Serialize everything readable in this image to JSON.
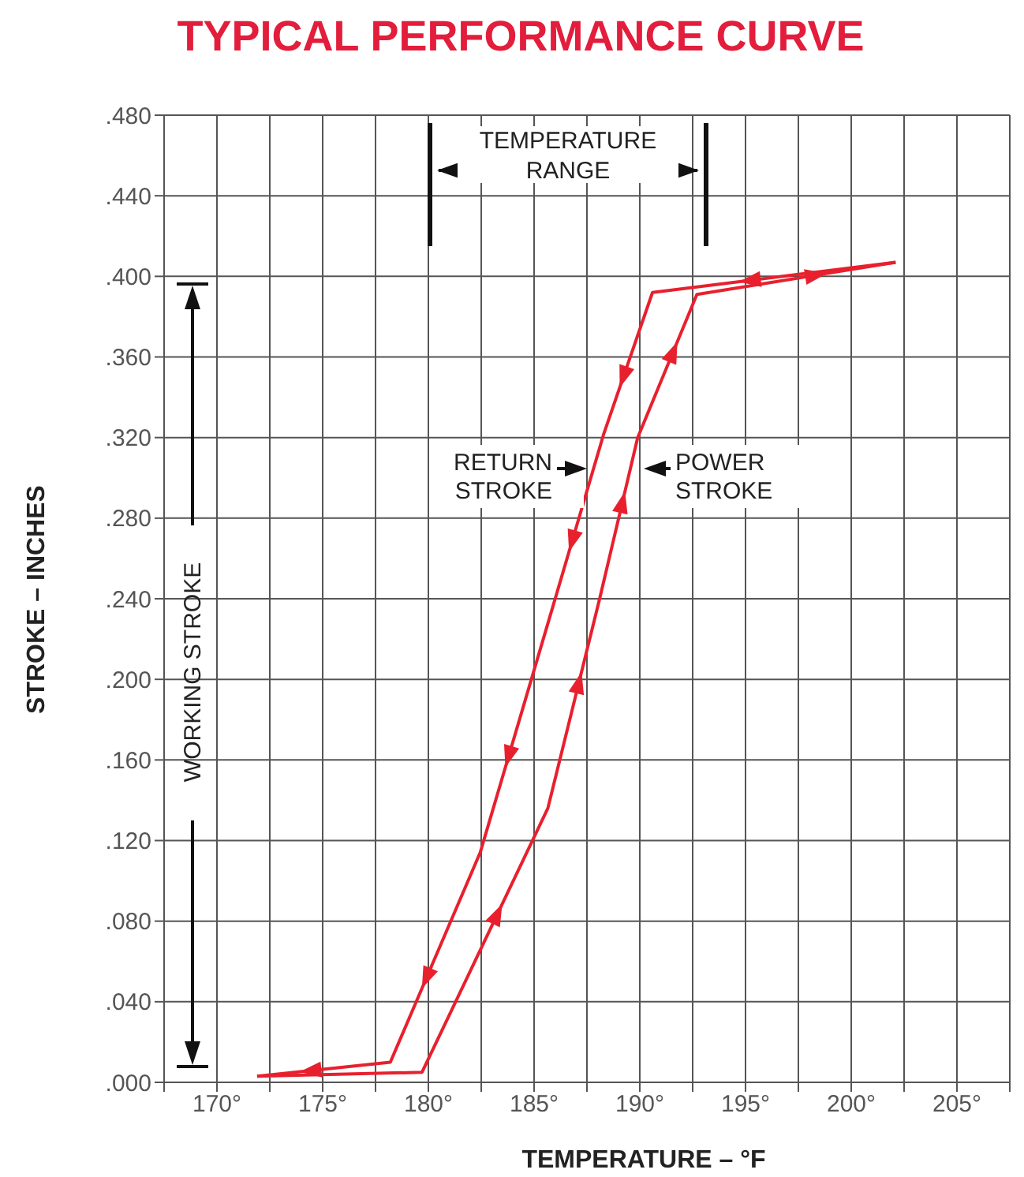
{
  "chart_data": {
    "type": "line",
    "title": "TYPICAL PERFORMANCE CURVE",
    "xlabel": "TEMPERATURE – °F",
    "ylabel": "STROKE – INCHES",
    "annotations": [
      "TEMPERATURE RANGE",
      "WORKING STROKE"
    ],
    "series": [
      {
        "name": "RETURN STROKE",
        "color": "#e8202e",
        "x": [
          202.1,
          190.6,
          188.3,
          185.8,
          182.45,
          178.2,
          171.9
        ],
        "values": [
          0.407,
          0.392,
          0.322,
          0.233,
          0.114,
          0.01,
          0.003
        ]
      },
      {
        "name": "POWER STROKE",
        "color": "#e8202e",
        "x": [
          171.9,
          179.7,
          185.65,
          188.1,
          189.9,
          192.7,
          202.1
        ],
        "values": [
          0.003,
          0.005,
          0.136,
          0.24,
          0.32,
          0.391,
          0.407
        ]
      }
    ],
    "xlim": [
      167.5,
      207.5
    ],
    "xticks": [
      {
        "value": 167.5,
        "label": null
      },
      {
        "value": 170,
        "label": "170°"
      },
      {
        "value": 172.5,
        "label": null
      },
      {
        "value": 175,
        "label": "175°"
      },
      {
        "value": 177.5,
        "label": null
      },
      {
        "value": 180,
        "label": "180°"
      },
      {
        "value": 182.5,
        "label": null
      },
      {
        "value": 185,
        "label": "185°"
      },
      {
        "value": 187.5,
        "label": null
      },
      {
        "value": 190,
        "label": "190°"
      },
      {
        "value": 192.5,
        "label": null
      },
      {
        "value": 195,
        "label": "195°"
      },
      {
        "value": 197.5,
        "label": null
      },
      {
        "value": 200,
        "label": "200°"
      },
      {
        "value": 202.5,
        "label": null
      },
      {
        "value": 205,
        "label": "205°"
      },
      {
        "value": 207.5,
        "label": null
      }
    ],
    "ylim": [
      0,
      0.48
    ],
    "yticks": [
      {
        "value": 0,
        "label": ".000"
      },
      {
        "value": 0.04,
        "label": ".040"
      },
      {
        "value": 0.08,
        "label": ".080"
      },
      {
        "value": 0.12,
        "label": ".120"
      },
      {
        "value": 0.16,
        "label": ".160"
      },
      {
        "value": 0.2,
        "label": ".200"
      },
      {
        "value": 0.24,
        "label": ".240"
      },
      {
        "value": 0.28,
        "label": ".280"
      },
      {
        "value": 0.32,
        "label": ".320"
      },
      {
        "value": 0.36,
        "label": ".360"
      },
      {
        "value": 0.4,
        "label": ".400"
      },
      {
        "value": 0.44,
        "label": ".440"
      },
      {
        "value": 0.48,
        "label": ".480"
      }
    ],
    "grid": true,
    "line_style": "solid"
  }
}
